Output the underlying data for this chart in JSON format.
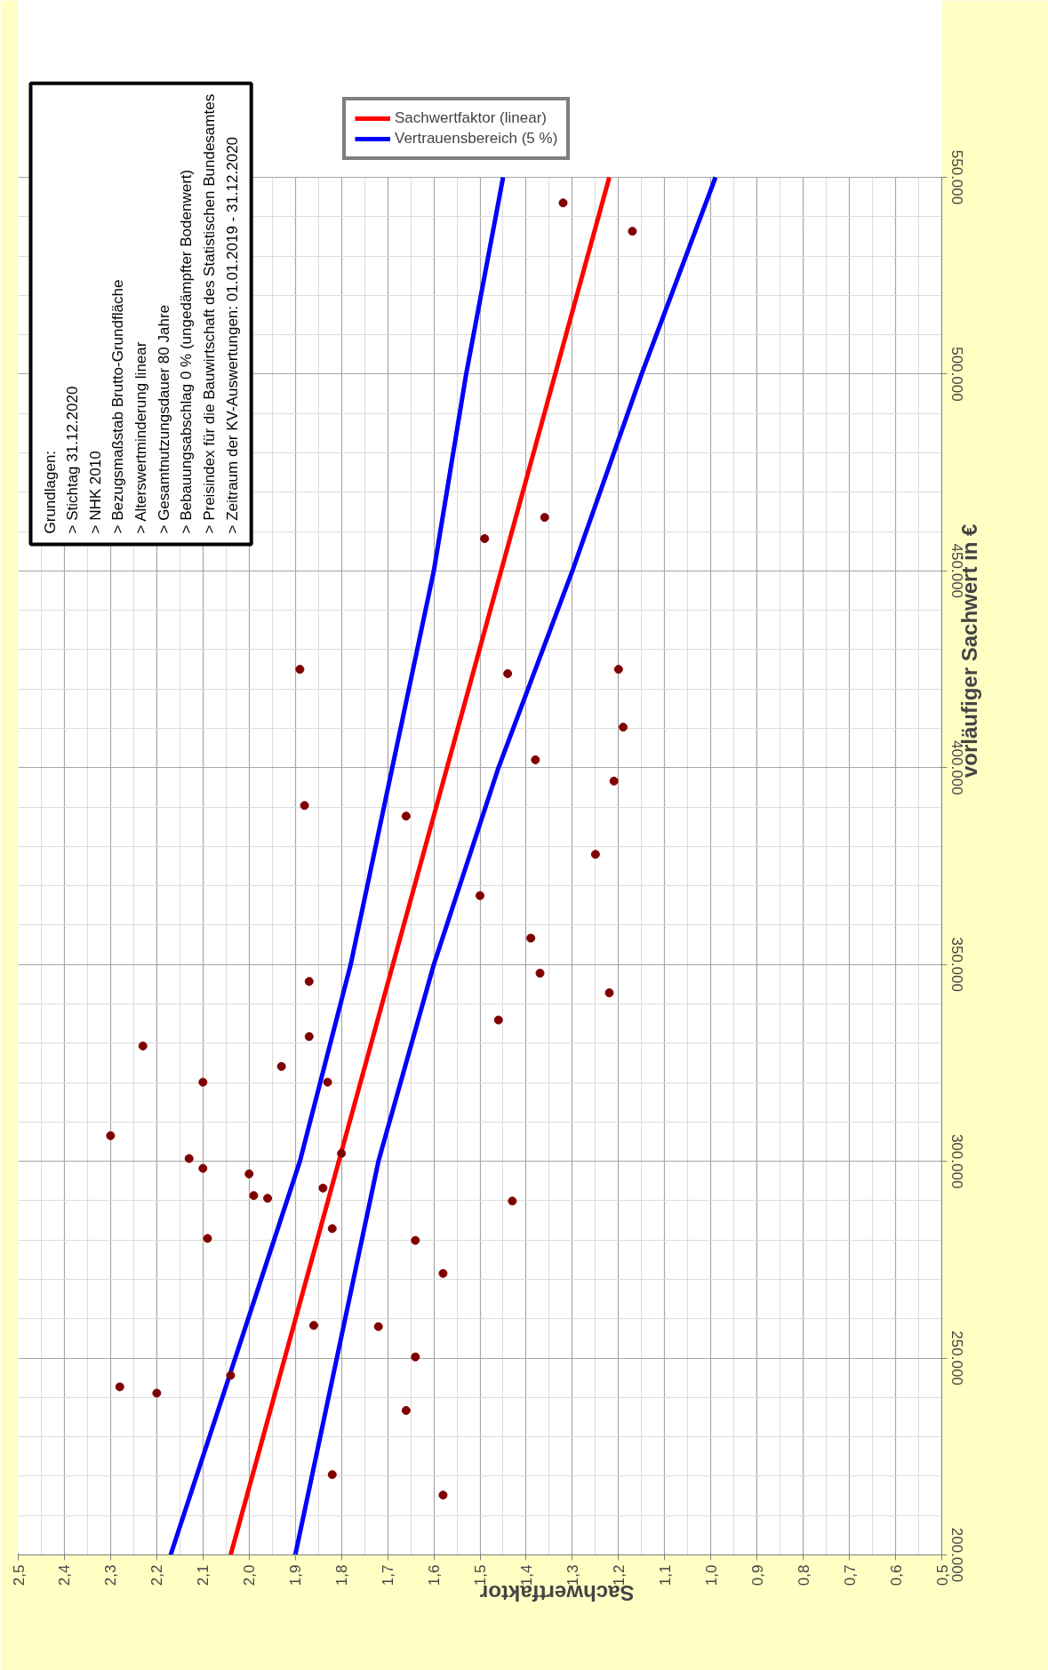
{
  "chart_data": {
    "type": "scatter",
    "xlabel": "Sachwertfaktor",
    "ylabel": "vorläufiger Sachwert in €",
    "annotations": [
      "Grundlagen:",
      "> Stichtag 31.12.2020",
      "> NHK 2010",
      "> Bezugsmaßstab Brutto-Grundfläche",
      "> Alterswertminderung linear",
      "> Gesamtnutzungsdauer 80 Jahre",
      "> Bebauungsabschlag 0 % (ungedämpfter Bodenwert)",
      "> Preisindex für die Bauwirtschaft des Statistischen Bundesamtes",
      "> Zeitraum der KV-Auswertungen: 01.01.2019 - 31.12.2020"
    ],
    "xlim": [
      2.5,
      0.5
    ],
    "ylim": [
      200000,
      550000
    ],
    "xticks": [
      {
        "value": 2.5,
        "label": "2,5"
      },
      {
        "value": 2.4,
        "label": "2,4"
      },
      {
        "value": 2.3,
        "label": "2,3"
      },
      {
        "value": 2.2,
        "label": "2,2"
      },
      {
        "value": 2.1,
        "label": "2,1"
      },
      {
        "value": 2.0,
        "label": "2,0"
      },
      {
        "value": 1.9,
        "label": "1,9"
      },
      {
        "value": 1.8,
        "label": "1,8"
      },
      {
        "value": 1.7,
        "label": "1,7"
      },
      {
        "value": 1.6,
        "label": "1,6"
      },
      {
        "value": 1.5,
        "label": "1,5"
      },
      {
        "value": 1.4,
        "label": "1,4"
      },
      {
        "value": 1.3,
        "label": "1,3"
      },
      {
        "value": 1.2,
        "label": "1,2"
      },
      {
        "value": 1.1,
        "label": "1,1"
      },
      {
        "value": 1.0,
        "label": "1,0"
      },
      {
        "value": 0.9,
        "label": "0,9"
      },
      {
        "value": 0.8,
        "label": "0,8"
      },
      {
        "value": 0.7,
        "label": "0,7"
      },
      {
        "value": 0.6,
        "label": "0,6"
      },
      {
        "value": 0.5,
        "label": "0,5"
      }
    ],
    "yticks": [
      {
        "value": 200000,
        "label": "200.000"
      },
      {
        "value": 250000,
        "label": "250.000"
      },
      {
        "value": 300000,
        "label": "300.000"
      },
      {
        "value": 350000,
        "label": "350.000"
      },
      {
        "value": 400000,
        "label": "400.000"
      },
      {
        "value": 450000,
        "label": "450.000"
      },
      {
        "value": 500000,
        "label": "500.000"
      },
      {
        "value": 550000,
        "label": "550.000"
      }
    ],
    "grid": true,
    "legend": "top",
    "series": [
      {
        "color": "#800000",
        "marker": "circle",
        "values": [
          543500,
          536300,
          458200,
          463600,
          425000,
          423900,
          425000,
          410300,
          402000,
          396600,
          390400,
          387700,
          378000,
          367500,
          356700,
          347800,
          345700,
          342800,
          335900,
          331700,
          329300,
          324100,
          320100,
          320100,
          306500,
          302000,
          300700,
          298200,
          296800,
          293200,
          291300,
          290600,
          289900,
          282900,
          280400,
          279900,
          271500,
          258300,
          258000,
          250300,
          245600,
          242700,
          241100,
          236700,
          220400,
          215200
        ],
        "x": [
          1.32,
          1.17,
          1.49,
          1.36,
          1.89,
          1.44,
          1.2,
          1.19,
          1.38,
          1.21,
          1.88,
          1.66,
          1.25,
          1.5,
          1.39,
          1.37,
          1.87,
          1.22,
          1.46,
          1.87,
          2.23,
          1.93,
          2.1,
          1.83,
          2.3,
          1.8,
          2.13,
          2.1,
          2.0,
          1.84,
          1.99,
          1.96,
          1.43,
          1.82,
          2.09,
          1.64,
          1.58,
          1.86,
          1.72,
          1.64,
          2.04,
          2.28,
          2.2,
          1.66,
          1.82,
          1.58
        ]
      },
      {
        "type": "line",
        "name": "Sachwertfaktor (linear)",
        "color": "#ff0000",
        "line_style": "solid",
        "values": [
          200000,
          550000
        ],
        "x": [
          2.04,
          1.22
        ]
      },
      {
        "type": "line",
        "name": "Vertrauensbereich (5 %)",
        "color": "#0000ff",
        "line_style": "solid",
        "values": [
          200000,
          250000,
          300000,
          350000,
          400000,
          450000,
          500000,
          550000
        ],
        "x": [
          2.17,
          2.03,
          1.89,
          1.78,
          1.69,
          1.6,
          1.53,
          1.45
        ]
      },
      {
        "type": "line",
        "color": "#0000ff",
        "line_style": "solid",
        "values": [
          200000,
          250000,
          300000,
          350000,
          400000,
          450000,
          500000,
          550000
        ],
        "x": [
          1.9,
          1.81,
          1.72,
          1.6,
          1.46,
          1.3,
          1.15,
          0.99
        ]
      }
    ]
  }
}
